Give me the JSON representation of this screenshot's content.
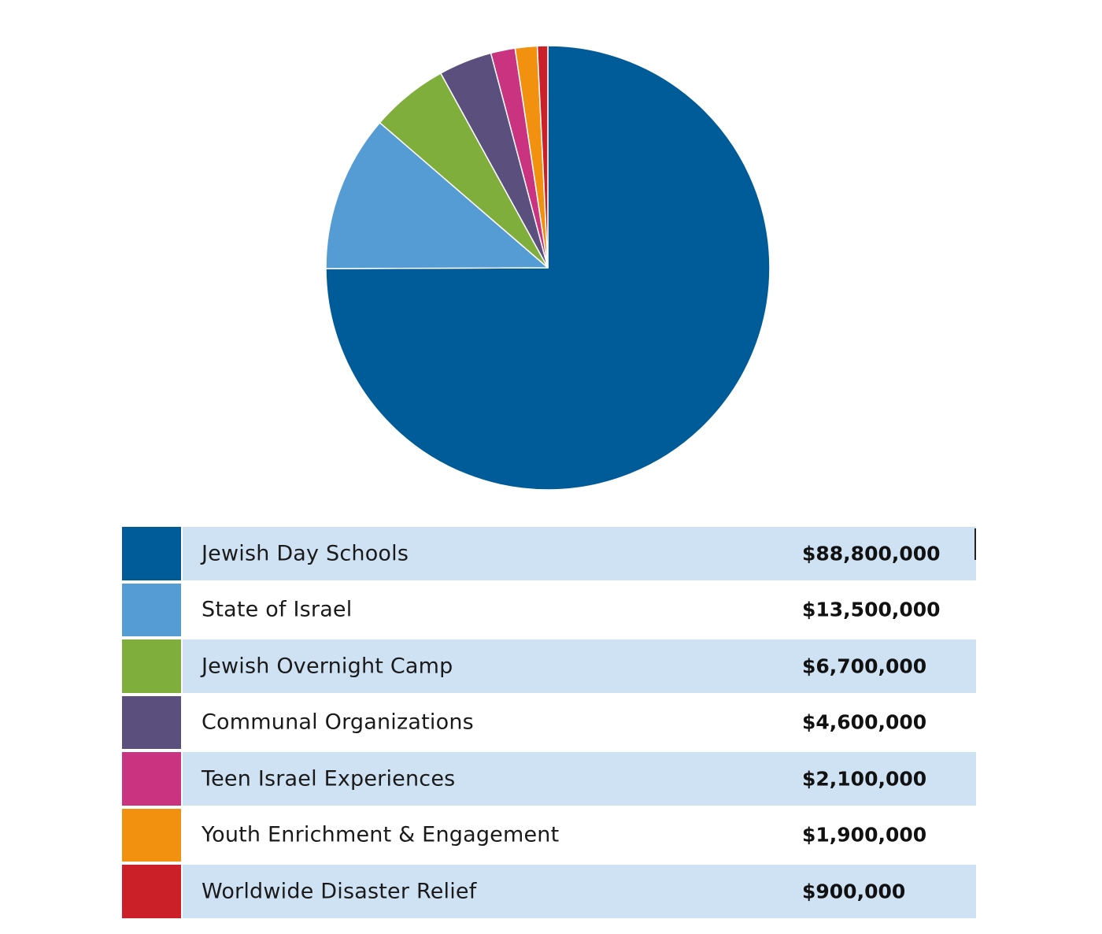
{
  "chart_data": {
    "type": "pie",
    "title": "",
    "categories": [
      "Jewish Day Schools",
      "State of Israel",
      "Jewish Overnight Camp",
      "Communal Organizations",
      "Teen Israel Experiences",
      "Youth Enrichment & Engagement",
      "Worldwide Disaster Relief"
    ],
    "values": [
      88800000,
      13500000,
      6700000,
      4600000,
      2100000,
      1900000,
      900000
    ],
    "value_labels": [
      "$88,800,000",
      "$13,500,000",
      "$6,700,000",
      "$4,600,000",
      "$2,100,000",
      "$1,900,000",
      "$900,000"
    ],
    "colors": [
      "#005b99",
      "#559bd4",
      "#80ae3c",
      "#5b4f7e",
      "#c9337f",
      "#f2900f",
      "#cb2027"
    ],
    "start_angle": "top (12 o'clock)",
    "direction": "clockwise",
    "legend_placement": "bottom (table)"
  }
}
